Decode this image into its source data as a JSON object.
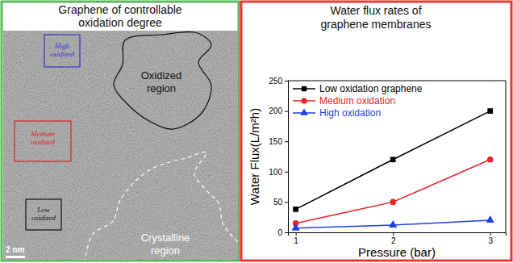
{
  "image_panel": {
    "title": "Graphene of controllable oxidation degree",
    "annotations": [
      {
        "label": "High oxidized",
        "color": "#3333cc"
      },
      {
        "label": "Medium oxidized",
        "color": "#e02020"
      },
      {
        "label": "Low oxidized",
        "color": "#111111"
      }
    ],
    "regions": [
      {
        "label": "Oxidized region",
        "color": "#111111"
      },
      {
        "label": "Crystalline region",
        "color": "#ffffff"
      }
    ],
    "scale_bar": "2 nm"
  },
  "chart_data": {
    "type": "line",
    "title": "Water flux rates of graphene membranes",
    "x_label": "Pressure (bar)",
    "y_label": "Water Flux(L/m²h)",
    "x": [
      1,
      2,
      3
    ],
    "series": [
      {
        "name": "Low oxidation graphene",
        "color": "#000000",
        "marker": "square",
        "values": [
          38,
          120,
          200
        ]
      },
      {
        "name": "Medium oxidation",
        "color": "#e8242a",
        "marker": "circle",
        "values": [
          15,
          50,
          120
        ]
      },
      {
        "name": "High oxidation",
        "color": "#1f3fe0",
        "marker": "triangle",
        "values": [
          7,
          12,
          20
        ]
      }
    ],
    "xlim": [
      0.92,
      3.16
    ],
    "xticks": [
      1,
      2,
      3
    ],
    "ylim": [
      0,
      250
    ],
    "yticks": [
      0,
      50,
      100,
      150,
      200,
      250
    ],
    "grid": false,
    "legend": "upper left"
  }
}
